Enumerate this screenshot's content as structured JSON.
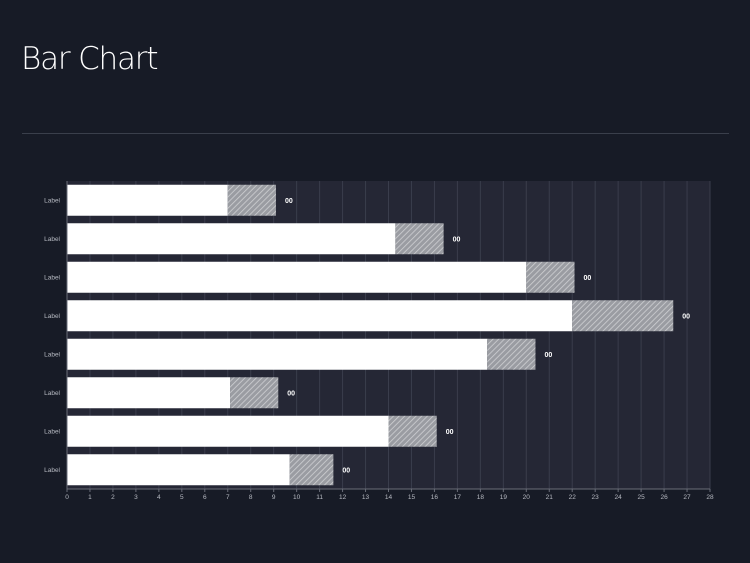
{
  "page": {
    "title": "Bar Chart"
  },
  "chart_data": {
    "type": "bar",
    "orientation": "horizontal",
    "stacked": true,
    "categories": [
      "Label",
      "Label",
      "Label",
      "Label",
      "Label",
      "Label",
      "Label",
      "Label"
    ],
    "series": [
      {
        "values": [
          7,
          14.3,
          20,
          22,
          18.3,
          7.1,
          14,
          9.7
        ],
        "color": "#ffffff",
        "pattern": "solid"
      },
      {
        "values": [
          2.1,
          2.1,
          2.1,
          4.4,
          2.1,
          2.1,
          2.1,
          1.9
        ],
        "color": "#9a9ca2",
        "pattern": "hatched"
      }
    ],
    "data_labels": [
      "00",
      "00",
      "00",
      "00",
      "00",
      "00",
      "00",
      "00"
    ],
    "x_ticks": [
      "0",
      "1",
      "2",
      "3",
      "4",
      "5",
      "6",
      "7",
      "8",
      "9",
      "10",
      "11",
      "12",
      "13",
      "14",
      "15",
      "16",
      "17",
      "18",
      "19",
      "20",
      "21",
      "22",
      "23",
      "24",
      "25",
      "26",
      "27",
      "28"
    ],
    "xlim": [
      0,
      28
    ],
    "grid": true,
    "colors": {
      "background": "#171b26",
      "plot_area": "#252735",
      "bar": "#ffffff",
      "gridline": "#3a3d4c",
      "text": "#b7bac2",
      "data_label": "#ffffff"
    }
  }
}
